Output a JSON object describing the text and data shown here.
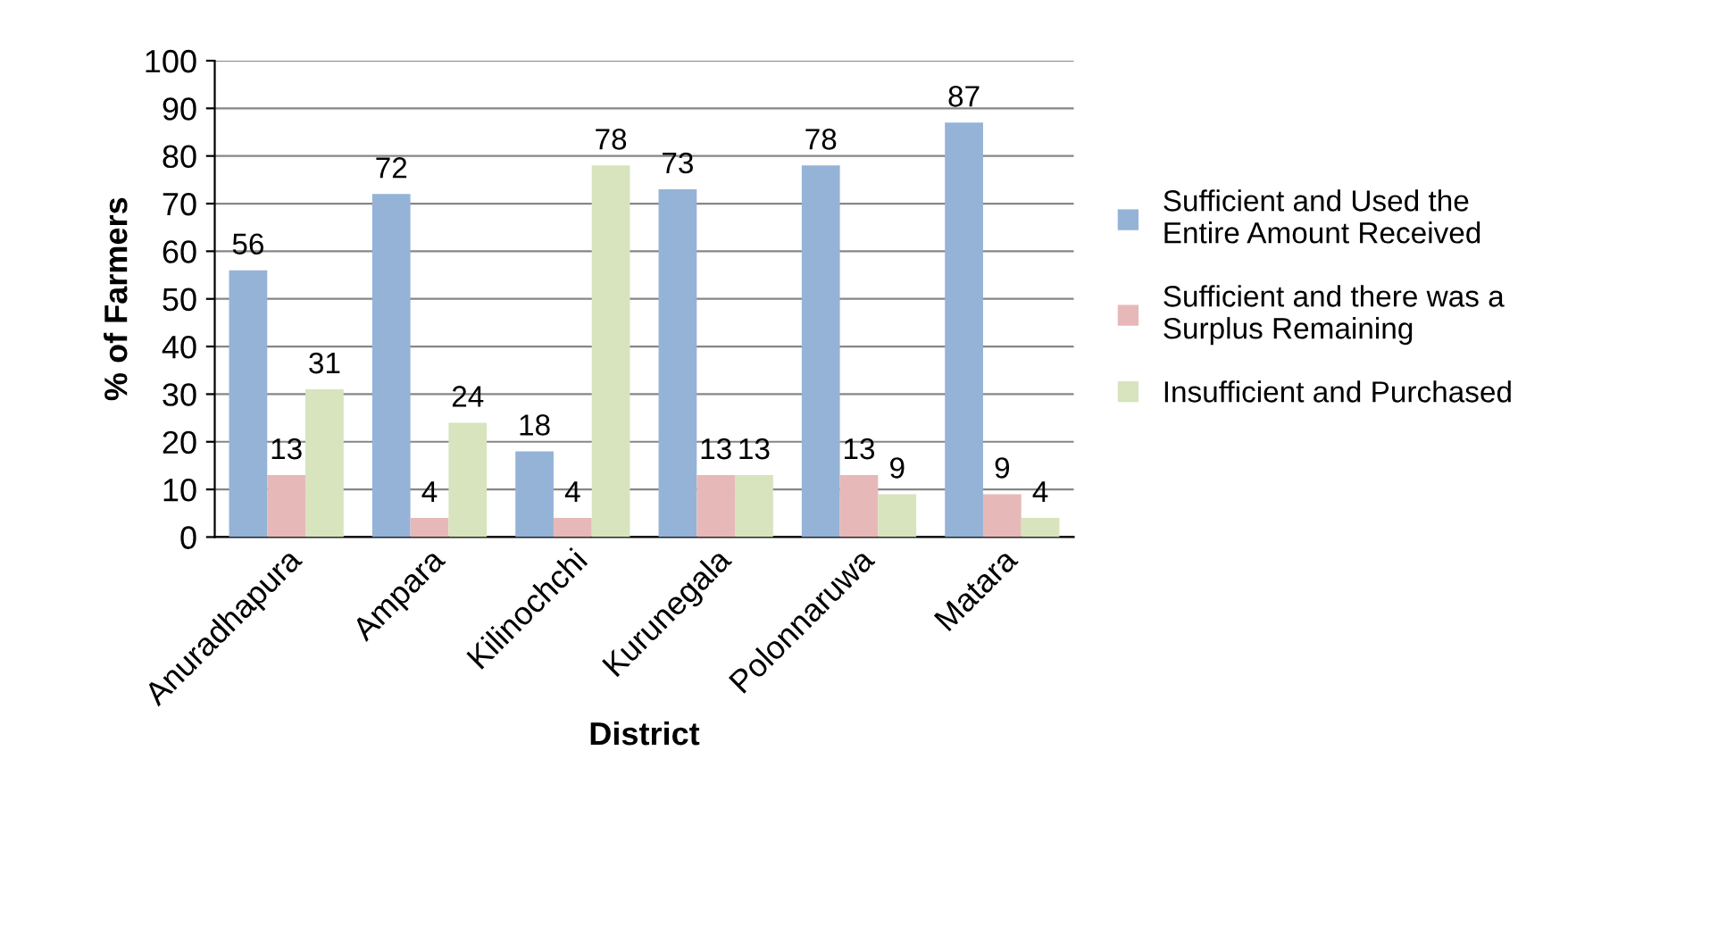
{
  "chart_data": {
    "type": "bar",
    "xlabel": "District",
    "ylabel": "% of Farmers",
    "categories": [
      "Anuradhapura",
      "Ampara",
      "Kilinochchi",
      "Kurunegala",
      "Polonnaruwa",
      "Matara"
    ],
    "series": [
      {
        "name": "Sufficient and Used the Entire Amount Received",
        "color": "#95b3d7",
        "values": [
          56,
          72,
          18,
          73,
          78,
          87
        ]
      },
      {
        "name": "Sufficient and there was a Surplus Remaining",
        "color": "#e6b9b8",
        "values": [
          13,
          4,
          4,
          13,
          13,
          9
        ]
      },
      {
        "name": "Insufficient and Purchased",
        "color": "#d7e4bd",
        "values": [
          31,
          24,
          78,
          13,
          9,
          4
        ]
      }
    ],
    "ylim": [
      0,
      100
    ],
    "yticks": [
      0,
      10,
      20,
      30,
      40,
      50,
      60,
      70,
      80,
      90,
      100
    ],
    "grid": "y",
    "legend": "right",
    "data_labels": true
  }
}
